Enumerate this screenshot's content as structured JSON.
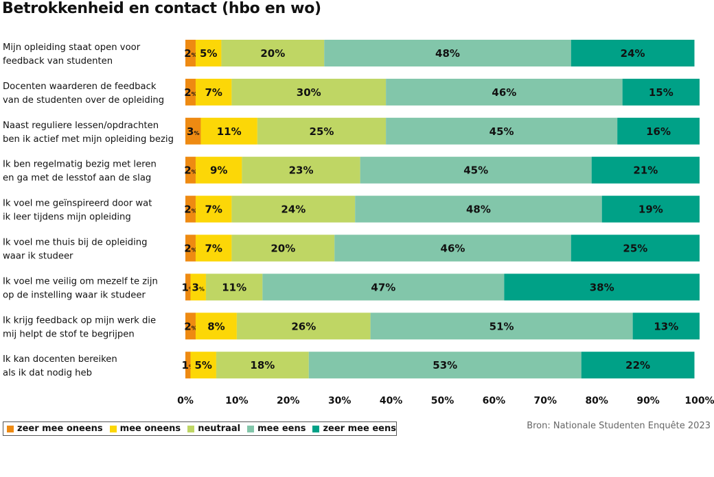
{
  "title": "Betrokkenheid en contact (hbo en wo)",
  "source": "Bron: Nationale Studenten Enquête 2023",
  "chart_data": {
    "type": "bar",
    "orientation": "horizontal",
    "stacked": true,
    "xlim": [
      0,
      100
    ],
    "x_ticks": [
      "0%",
      "10%",
      "20%",
      "30%",
      "40%",
      "50%",
      "60%",
      "70%",
      "80%",
      "90%",
      "100%"
    ],
    "legend_position": "bottom-left",
    "categories": [
      [
        "Mijn opleiding staat open voor",
        "feedback van studenten"
      ],
      [
        "Docenten waarderen de feedback",
        "van de studenten over de opleiding"
      ],
      [
        "Naast reguliere lessen/opdrachten",
        "ben ik actief met mijn opleiding bezig"
      ],
      [
        "Ik ben regelmatig bezig met leren",
        "en ga met de lesstof aan de slag"
      ],
      [
        "Ik voel me geïnspireerd door wat",
        "ik leer tijdens mijn opleiding"
      ],
      [
        "Ik voel me thuis bij de opleiding",
        "waar ik studeer"
      ],
      [
        "Ik voel me veilig om mezelf te zijn",
        "op de instelling waar ik studeer"
      ],
      [
        "Ik krijg feedback op mijn werk die",
        "mij helpt de stof te begrijpen"
      ],
      [
        "Ik kan docenten bereiken",
        "als ik dat nodig heb"
      ]
    ],
    "series": [
      {
        "name": "zeer mee oneens",
        "color": "#EE8A12",
        "values": [
          2,
          2,
          3,
          2,
          2,
          2,
          1,
          2,
          1
        ]
      },
      {
        "name": "mee oneens",
        "color": "#FCD707",
        "values": [
          5,
          7,
          11,
          9,
          7,
          7,
          3,
          8,
          5
        ]
      },
      {
        "name": "neutraal",
        "color": "#BFD664",
        "values": [
          20,
          30,
          25,
          23,
          24,
          20,
          11,
          26,
          18
        ]
      },
      {
        "name": "mee eens",
        "color": "#82C6AA",
        "values": [
          48,
          46,
          45,
          45,
          48,
          46,
          47,
          51,
          53
        ]
      },
      {
        "name": "zeer mee eens",
        "color": "#00A187",
        "values": [
          24,
          15,
          16,
          21,
          19,
          25,
          38,
          13,
          22
        ]
      }
    ]
  }
}
